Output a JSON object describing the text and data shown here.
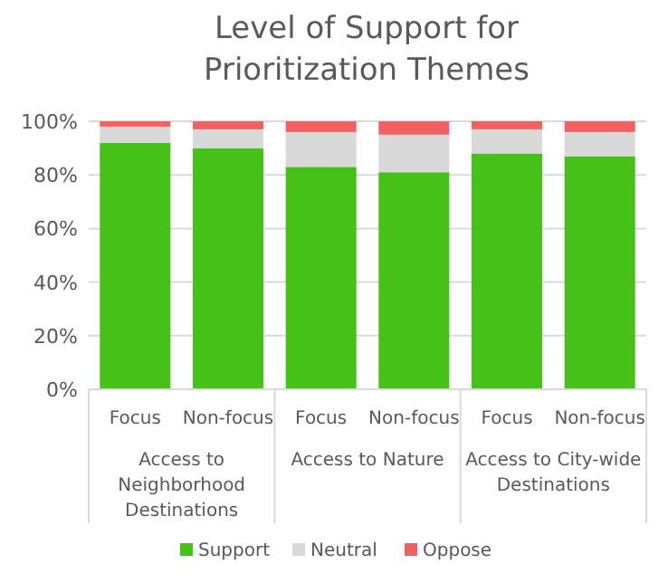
{
  "chart_data": {
    "type": "bar",
    "title": "Level of Support for Prioritization Themes",
    "stacked": true,
    "categories": [
      "Focus",
      "Non-focus",
      "Focus",
      "Non-focus",
      "Focus",
      "Non-focus"
    ],
    "series": [
      {
        "name": "Support",
        "color": "#45c118",
        "values": [
          92,
          90,
          83,
          81,
          88,
          87
        ]
      },
      {
        "name": "Neutral",
        "color": "#d9d9d9",
        "values": [
          6,
          7,
          13,
          14,
          9,
          9
        ]
      },
      {
        "name": "Oppose",
        "color": "#f26161",
        "values": [
          2,
          3,
          4,
          5,
          3,
          4
        ]
      }
    ],
    "annotations": [
      "Access to Neighborhood Destinations",
      "Access to Nature",
      "Access to City-wide Destinations"
    ],
    "ylim": [
      0,
      100
    ],
    "yticks": [
      {
        "value": 0,
        "label": "0%"
      },
      {
        "value": 20,
        "label": "20%"
      },
      {
        "value": 40,
        "label": "40%"
      },
      {
        "value": 60,
        "label": "60%"
      },
      {
        "value": 80,
        "label": "80%"
      },
      {
        "value": 100,
        "label": "100%"
      }
    ],
    "grid": "y",
    "legend": "bottom"
  }
}
